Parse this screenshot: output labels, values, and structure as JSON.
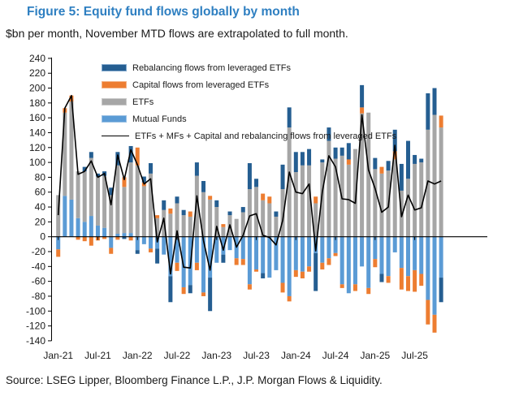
{
  "header": {
    "title": "Figure 5: Equity fund flows globally by month",
    "subtitle": "$bn per month, November MTD flows are extrapolated to full month."
  },
  "source_line": "Source: LSEG Lipper, Bloomberg Finance L.P., J.P. Morgan Flows & Liquidity.",
  "colors": {
    "title_blue": "#2e7fc1",
    "rebalancing": "#255e91",
    "capital": "#ed7d31",
    "etfs": "#a6a6a6",
    "mutual_funds": "#5b9bd5",
    "total_line": "#000000",
    "axis": "#000000"
  },
  "legend": [
    {
      "label": "Rebalancing flows from leveraged ETFs",
      "color": "#255e91",
      "border": "#7fa7cc",
      "kind": "swatch"
    },
    {
      "label": "Capital flows from leveraged ETFs",
      "color": "#ed7d31",
      "border": "#f4b183",
      "kind": "swatch"
    },
    {
      "label": "ETFs",
      "color": "#a6a6a6",
      "border": "#c9c9c9",
      "kind": "swatch"
    },
    {
      "label": "Mutual Funds",
      "color": "#5b9bd5",
      "border": "#9cc1e4",
      "kind": "swatch"
    },
    {
      "label": "ETFs + MFs + Capital and rebalancing flows from leveraged ETFs",
      "color": "#000000",
      "kind": "line"
    }
  ],
  "chart_data": {
    "type": "bar",
    "stacked": true,
    "line_overlay": true,
    "grid": false,
    "ylim": [
      -140,
      240
    ],
    "ytick_step": 20,
    "xticks": [
      "Jan-21",
      "Jul-21",
      "Jan-22",
      "Jul-22",
      "Jan-23",
      "Jul-23",
      "Jan-24",
      "Jul-24",
      "Jan-25",
      "Jul-25"
    ],
    "xtick_every_months": 6,
    "months": [
      "Jan-21",
      "Feb-21",
      "Mar-21",
      "Apr-21",
      "May-21",
      "Jun-21",
      "Jul-21",
      "Aug-21",
      "Sep-21",
      "Oct-21",
      "Nov-21",
      "Dec-21",
      "Jan-22",
      "Feb-22",
      "Mar-22",
      "Apr-22",
      "May-22",
      "Jun-22",
      "Jul-22",
      "Aug-22",
      "Sep-22",
      "Oct-22",
      "Nov-22",
      "Dec-22",
      "Jan-23",
      "Feb-23",
      "Mar-23",
      "Apr-23",
      "May-23",
      "Jun-23",
      "Jul-23",
      "Aug-23",
      "Sep-23",
      "Oct-23",
      "Nov-23",
      "Dec-23",
      "Jan-24",
      "Feb-24",
      "Mar-24",
      "Apr-24",
      "May-24",
      "Jun-24",
      "Jul-24",
      "Aug-24",
      "Sep-24",
      "Oct-24",
      "Nov-24",
      "Dec-24",
      "Jan-25",
      "Feb-25",
      "Mar-25",
      "Apr-25",
      "May-25",
      "Jun-25",
      "Jul-25",
      "Aug-25",
      "Sep-25",
      "Oct-25",
      "Nov-25"
    ],
    "series": [
      {
        "name": "Mutual Funds",
        "color": "#5b9bd5",
        "values": [
          -17,
          55,
          50,
          25,
          20,
          28,
          15,
          12,
          -15,
          4,
          5,
          5,
          -18,
          -10,
          -16,
          -16,
          -24,
          -53,
          -35,
          -68,
          -65,
          -35,
          -75,
          -55,
          -35,
          -24,
          -18,
          -29,
          -30,
          -64,
          -44,
          -49,
          -55,
          -45,
          -62,
          -80,
          -45,
          -47,
          -40,
          -22,
          -35,
          -29,
          -22,
          -64,
          -76,
          -64,
          -40,
          -69,
          -30,
          -50,
          -53,
          -21,
          -42,
          -53,
          -45,
          -50,
          -85,
          -105,
          -55
        ]
      },
      {
        "name": "ETFs",
        "color": "#a6a6a6",
        "values": [
          56,
          112,
          132,
          63,
          68,
          78,
          66,
          70,
          56,
          92,
          62,
          95,
          96,
          68,
          85,
          25,
          36,
          31,
          45,
          29,
          27,
          82,
          60,
          50,
          40,
          13,
          29,
          24,
          33,
          64,
          67,
          49,
          45,
          27,
          64,
          147,
          87,
          96,
          96,
          45,
          100,
          129,
          105,
          109,
          97,
          118,
          166,
          167,
          91,
          85,
          89,
          104,
          62,
          78,
          98,
          100,
          144,
          164,
          147
        ]
      },
      {
        "name": "Capital flows from leveraged ETFs",
        "color": "#ed7d31",
        "values": [
          -10,
          6,
          8,
          -4,
          -6,
          -12,
          -5,
          -3,
          -8,
          -4,
          13,
          -5,
          24,
          5,
          -5,
          4,
          0,
          7,
          -11,
          -9,
          7,
          -10,
          -5,
          5,
          0,
          4,
          0,
          -9,
          -8,
          -7,
          -3,
          9,
          9,
          0,
          -13,
          -7,
          -9,
          -9,
          -7,
          9,
          -9,
          -9,
          -4,
          -5,
          7,
          -9,
          8,
          -8,
          -11,
          9,
          -9,
          11,
          -29,
          -20,
          -29,
          -16,
          -33,
          -24,
          16
        ]
      },
      {
        "name": "Rebalancing flows from leveraged ETFs",
        "color": "#255e91",
        "values": [
          0,
          0,
          0,
          0,
          6,
          8,
          4,
          6,
          10,
          18,
          -3,
          22,
          -5,
          8,
          14,
          -20,
          13,
          -35,
          9,
          7,
          -11,
          18,
          15,
          -45,
          9,
          -11,
          5,
          0,
          7,
          35,
          11,
          -7,
          0,
          7,
          33,
          27,
          27,
          18,
          22,
          -51,
          4,
          18,
          15,
          11,
          22,
          0,
          30,
          0,
          15,
          -11,
          13,
          29,
          36,
          51,
          12,
          5,
          49,
          36,
          -33
        ]
      }
    ],
    "line": {
      "name": "ETFs + MFs + Capital and rebalancing flows from leveraged ETFs",
      "color": "#000000",
      "values": [
        29,
        173,
        190,
        84,
        88,
        102,
        80,
        85,
        43,
        110,
        77,
        117,
        97,
        71,
        78,
        -7,
        25,
        -50,
        8,
        -41,
        -42,
        55,
        -5,
        -45,
        14,
        -18,
        16,
        -14,
        2,
        28,
        31,
        2,
        -1,
        -11,
        22,
        87,
        60,
        58,
        71,
        -19,
        60,
        109,
        94,
        51,
        50,
        45,
        164,
        90,
        65,
        33,
        40,
        123,
        27,
        56,
        36,
        39,
        75,
        71,
        75
      ]
    }
  }
}
